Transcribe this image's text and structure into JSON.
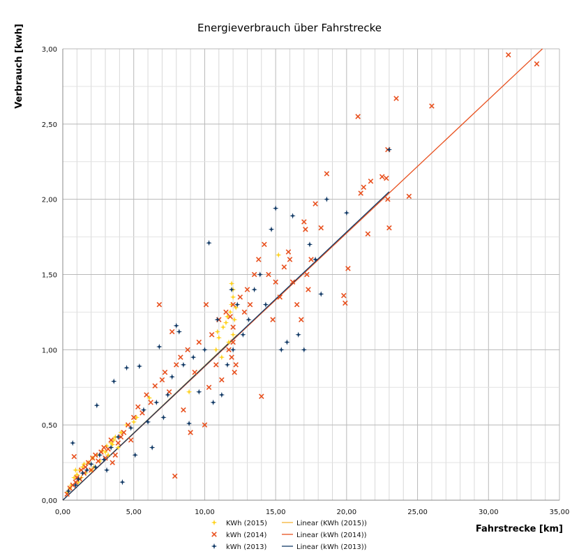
{
  "chart_data": {
    "type": "scatter",
    "title": "Energieverbrauch über Fahrstrecke",
    "xlabel": "Fahrstrecke [km]",
    "ylabel": "Verbrauch [kwh]",
    "xlim": [
      0,
      35
    ],
    "ylim": [
      0,
      3
    ],
    "x_ticks": [
      0,
      5,
      10,
      15,
      20,
      25,
      30,
      35
    ],
    "x_tick_labels": [
      "0,00",
      "5,00",
      "10,00",
      "15,00",
      "20,00",
      "25,00",
      "30,00",
      "35,00"
    ],
    "y_ticks": [
      0,
      0.5,
      1,
      1.5,
      2,
      2.5,
      3
    ],
    "y_tick_labels": [
      "0,00",
      "0,50",
      "1,00",
      "1,50",
      "2,00",
      "2,50",
      "3,00"
    ],
    "grid": true,
    "legend_position": "bottom",
    "series": [
      {
        "name": "KWh (2015)",
        "marker": "plus-star",
        "color": "#FFD21F",
        "points": [
          [
            0.3,
            0.05
          ],
          [
            0.6,
            0.1
          ],
          [
            0.8,
            0.15
          ],
          [
            1.0,
            0.17
          ],
          [
            1.2,
            0.2
          ],
          [
            1.4,
            0.22
          ],
          [
            1.6,
            0.18
          ],
          [
            1.8,
            0.25
          ],
          [
            2.1,
            0.28
          ],
          [
            2.4,
            0.3
          ],
          [
            2.8,
            0.33
          ],
          [
            3.1,
            0.36
          ],
          [
            3.4,
            0.38
          ],
          [
            3.6,
            0.4
          ],
          [
            3.9,
            0.35
          ],
          [
            1.1,
            0.12
          ],
          [
            0.9,
            0.2
          ],
          [
            1.5,
            0.24
          ],
          [
            2.2,
            0.22
          ],
          [
            2.6,
            0.26
          ],
          [
            3.2,
            0.3
          ],
          [
            3.7,
            0.42
          ],
          [
            4.1,
            0.45
          ],
          [
            5.2,
            0.55
          ],
          [
            6.1,
            0.68
          ],
          [
            8.9,
            0.72
          ],
          [
            10.8,
            1.0
          ],
          [
            11.0,
            1.08
          ],
          [
            11.3,
            1.15
          ],
          [
            11.5,
            1.18
          ],
          [
            11.8,
            1.25
          ],
          [
            11.9,
            1.3
          ],
          [
            12.0,
            1.35
          ],
          [
            12.0,
            1.4
          ],
          [
            11.9,
            1.44
          ],
          [
            12.1,
            1.2
          ],
          [
            11.7,
            1.05
          ],
          [
            11.2,
            0.95
          ],
          [
            12.0,
            1.1
          ],
          [
            15.2,
            1.63
          ],
          [
            0.5,
            0.08
          ],
          [
            1.3,
            0.15
          ],
          [
            2.0,
            0.2
          ],
          [
            3.0,
            0.32
          ],
          [
            3.5,
            0.37
          ],
          [
            4.5,
            0.5
          ],
          [
            5.0,
            0.52
          ],
          [
            11.6,
            1.22
          ],
          [
            12.2,
            1.28
          ],
          [
            10.9,
            1.12
          ]
        ]
      },
      {
        "name": "kWh (2014)",
        "marker": "x",
        "color": "#E8501E",
        "points": [
          [
            0.3,
            0.04
          ],
          [
            0.5,
            0.08
          ],
          [
            0.7,
            0.1
          ],
          [
            0.8,
            0.29
          ],
          [
            0.9,
            0.12
          ],
          [
            1.0,
            0.15
          ],
          [
            1.2,
            0.14
          ],
          [
            1.3,
            0.2
          ],
          [
            1.5,
            0.18
          ],
          [
            1.6,
            0.22
          ],
          [
            1.8,
            0.25
          ],
          [
            2.0,
            0.2
          ],
          [
            2.1,
            0.28
          ],
          [
            2.3,
            0.3
          ],
          [
            2.5,
            0.26
          ],
          [
            2.7,
            0.32
          ],
          [
            2.9,
            0.35
          ],
          [
            3.0,
            0.28
          ],
          [
            3.2,
            0.34
          ],
          [
            3.4,
            0.4
          ],
          [
            3.5,
            0.25
          ],
          [
            3.7,
            0.3
          ],
          [
            3.9,
            0.38
          ],
          [
            4.1,
            0.42
          ],
          [
            4.3,
            0.45
          ],
          [
            4.6,
            0.5
          ],
          [
            4.8,
            0.4
          ],
          [
            5.0,
            0.55
          ],
          [
            5.3,
            0.62
          ],
          [
            5.6,
            0.58
          ],
          [
            5.9,
            0.7
          ],
          [
            6.2,
            0.65
          ],
          [
            6.5,
            0.76
          ],
          [
            6.8,
            1.3
          ],
          [
            7.0,
            0.8
          ],
          [
            7.2,
            0.85
          ],
          [
            7.5,
            0.72
          ],
          [
            7.7,
            1.12
          ],
          [
            7.9,
            0.16
          ],
          [
            8.0,
            0.9
          ],
          [
            8.3,
            0.95
          ],
          [
            8.5,
            0.6
          ],
          [
            8.8,
            1.0
          ],
          [
            9.0,
            0.45
          ],
          [
            9.3,
            0.85
          ],
          [
            9.6,
            1.05
          ],
          [
            10.0,
            0.5
          ],
          [
            10.1,
            1.3
          ],
          [
            10.3,
            0.75
          ],
          [
            10.5,
            1.1
          ],
          [
            10.8,
            0.9
          ],
          [
            11.0,
            1.2
          ],
          [
            11.2,
            0.8
          ],
          [
            11.5,
            1.25
          ],
          [
            11.7,
            1.0
          ],
          [
            11.9,
            0.95
          ],
          [
            12.0,
            1.15
          ],
          [
            12.0,
            1.05
          ],
          [
            12.1,
            0.85
          ],
          [
            12.0,
            1.3
          ],
          [
            11.8,
            1.22
          ],
          [
            12.2,
            0.9
          ],
          [
            12.5,
            1.35
          ],
          [
            12.8,
            1.25
          ],
          [
            13.0,
            1.4
          ],
          [
            13.2,
            1.3
          ],
          [
            13.5,
            1.5
          ],
          [
            13.8,
            1.6
          ],
          [
            14.0,
            0.69
          ],
          [
            14.2,
            1.7
          ],
          [
            14.5,
            1.5
          ],
          [
            14.8,
            1.2
          ],
          [
            15.0,
            1.45
          ],
          [
            15.3,
            1.35
          ],
          [
            15.6,
            1.55
          ],
          [
            15.9,
            1.65
          ],
          [
            16.0,
            1.6
          ],
          [
            16.2,
            1.45
          ],
          [
            16.5,
            1.3
          ],
          [
            16.8,
            1.2
          ],
          [
            17.0,
            1.85
          ],
          [
            17.1,
            1.8
          ],
          [
            17.2,
            1.5
          ],
          [
            17.3,
            1.4
          ],
          [
            17.5,
            1.6
          ],
          [
            17.8,
            1.97
          ],
          [
            18.2,
            1.81
          ],
          [
            18.6,
            2.17
          ],
          [
            19.8,
            1.36
          ],
          [
            19.9,
            1.31
          ],
          [
            20.1,
            1.54
          ],
          [
            20.8,
            2.55
          ],
          [
            21.0,
            2.04
          ],
          [
            21.2,
            2.08
          ],
          [
            21.7,
            2.12
          ],
          [
            21.5,
            1.77
          ],
          [
            22.5,
            2.15
          ],
          [
            22.8,
            2.14
          ],
          [
            22.9,
            2.0
          ],
          [
            22.9,
            2.33
          ],
          [
            23.0,
            1.81
          ],
          [
            23.5,
            2.67
          ],
          [
            24.4,
            2.02
          ],
          [
            26.0,
            2.62
          ],
          [
            31.4,
            2.96
          ],
          [
            33.4,
            2.9
          ]
        ]
      },
      {
        "name": "kWh (2013)",
        "marker": "plus-star",
        "color": "#123A66",
        "points": [
          [
            0.4,
            0.06
          ],
          [
            0.7,
            0.38
          ],
          [
            0.9,
            0.1
          ],
          [
            1.1,
            0.14
          ],
          [
            1.4,
            0.18
          ],
          [
            1.7,
            0.2
          ],
          [
            2.0,
            0.24
          ],
          [
            2.3,
            0.22
          ],
          [
            2.4,
            0.63
          ],
          [
            2.6,
            0.3
          ],
          [
            2.9,
            0.27
          ],
          [
            3.1,
            0.2
          ],
          [
            3.4,
            0.35
          ],
          [
            3.6,
            0.79
          ],
          [
            3.9,
            0.42
          ],
          [
            4.2,
            0.12
          ],
          [
            4.5,
            0.88
          ],
          [
            4.8,
            0.48
          ],
          [
            5.1,
            0.3
          ],
          [
            5.4,
            0.89
          ],
          [
            5.7,
            0.6
          ],
          [
            6.0,
            0.52
          ],
          [
            6.3,
            0.35
          ],
          [
            6.6,
            0.65
          ],
          [
            6.8,
            1.02
          ],
          [
            7.1,
            0.55
          ],
          [
            7.4,
            0.7
          ],
          [
            7.7,
            0.82
          ],
          [
            8.0,
            1.16
          ],
          [
            8.2,
            1.12
          ],
          [
            8.5,
            0.9
          ],
          [
            8.9,
            0.51
          ],
          [
            9.2,
            0.95
          ],
          [
            9.6,
            0.72
          ],
          [
            10.0,
            1.0
          ],
          [
            10.3,
            1.71
          ],
          [
            10.6,
            0.65
          ],
          [
            10.9,
            1.2
          ],
          [
            11.2,
            0.7
          ],
          [
            11.6,
            0.9
          ],
          [
            11.9,
            1.4
          ],
          [
            12.0,
            1.0
          ],
          [
            12.3,
            1.3
          ],
          [
            12.7,
            1.1
          ],
          [
            13.1,
            1.2
          ],
          [
            13.5,
            1.4
          ],
          [
            13.9,
            1.5
          ],
          [
            14.3,
            1.3
          ],
          [
            14.7,
            1.8
          ],
          [
            15.0,
            1.94
          ],
          [
            15.4,
            1.0
          ],
          [
            15.8,
            1.05
          ],
          [
            16.2,
            1.89
          ],
          [
            16.6,
            1.1
          ],
          [
            17.0,
            1.0
          ],
          [
            17.4,
            1.7
          ],
          [
            17.8,
            1.6
          ],
          [
            18.2,
            1.37
          ],
          [
            18.6,
            2.0
          ],
          [
            20.0,
            1.91
          ],
          [
            23.0,
            2.33
          ]
        ]
      }
    ],
    "trendlines": [
      {
        "name": "Linear (KWh (2015))",
        "color": "#F5B335",
        "x": [
          0,
          12.3
        ],
        "y": [
          0.0,
          1.1
        ]
      },
      {
        "name": "Linear (kWh (2014))",
        "color": "#E8501E",
        "x": [
          0,
          33.8
        ],
        "y": [
          0.0,
          3.0
        ]
      },
      {
        "name": "Linear (kWh (2013))",
        "color": "#123A66",
        "x": [
          0,
          23.0
        ],
        "y": [
          0.0,
          2.05
        ]
      }
    ]
  }
}
